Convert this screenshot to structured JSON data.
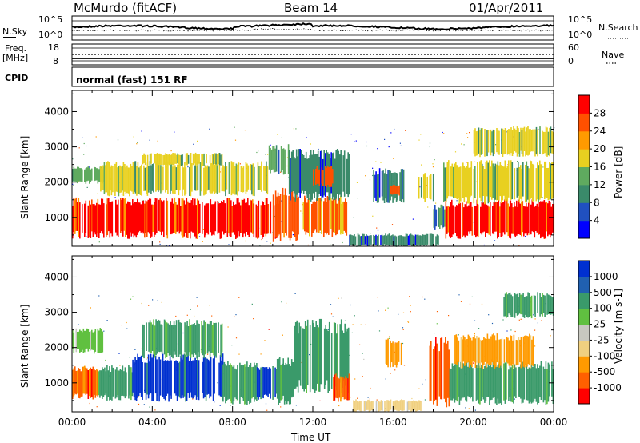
{
  "header": {
    "station": "McMurdo (fitACF)",
    "beam": "Beam 14",
    "date": "01/Apr/2011"
  },
  "top_panels": {
    "nsky_label": "N.Sky",
    "nsearch_label": "N.Search",
    "noise_ticks": [
      "10^5",
      "10^0"
    ],
    "freq_label_line1": "Freq.",
    "freq_label_line2": "[MHz]",
    "freq_ticks": [
      "18",
      "8"
    ],
    "nave_label": "Nave",
    "nave_ticks": [
      "60",
      "0"
    ],
    "cpid_label": "CPID",
    "cpid_value": "normal (fast) 151 RF"
  },
  "chart_data": [
    {
      "type": "heatmap",
      "title": "",
      "xlabel": "Time UT",
      "ylabel": "Slant Range [km]",
      "xlim": [
        0,
        24
      ],
      "ylim": [
        180,
        4600
      ],
      "x_ticks": [
        "00:00",
        "04:00",
        "08:00",
        "12:00",
        "16:00",
        "20:00",
        "00:00"
      ],
      "y_ticks": [
        1000,
        2000,
        3000,
        4000
      ],
      "colorbar": {
        "label": "Power [dB]",
        "ticks": [
          "4",
          "8",
          "12",
          "16",
          "20",
          "24",
          "28"
        ],
        "colors": [
          "#0000ff",
          "#2050c0",
          "#3a8a6a",
          "#5faa5f",
          "#e8d020",
          "#ff9a00",
          "#ff5000",
          "#ff0000"
        ]
      },
      "regions": [
        {
          "t0": 0.0,
          "t1": 10.4,
          "r0": 500,
          "r1": 1450,
          "level": 28
        },
        {
          "t0": 10.0,
          "t1": 11.3,
          "r0": 450,
          "r1": 1700,
          "level": 24
        },
        {
          "t0": 11.5,
          "t1": 13.7,
          "r0": 550,
          "r1": 1500,
          "level": 24
        },
        {
          "t0": 0.0,
          "t1": 1.6,
          "r0": 2000,
          "r1": 2400,
          "level": 12
        },
        {
          "t0": 1.4,
          "t1": 9.8,
          "r0": 1700,
          "r1": 2500,
          "level": 18
        },
        {
          "t0": 3.5,
          "t1": 7.5,
          "r0": 2500,
          "r1": 2800,
          "level": 16
        },
        {
          "t0": 9.8,
          "t1": 10.8,
          "r0": 2300,
          "r1": 3000,
          "level": 14
        },
        {
          "t0": 10.8,
          "t1": 13.8,
          "r0": 1600,
          "r1": 2800,
          "level": 10
        },
        {
          "t0": 12.0,
          "t1": 13.0,
          "r0": 1900,
          "r1": 2400,
          "level": 26
        },
        {
          "t0": 15.0,
          "t1": 16.5,
          "r0": 1500,
          "r1": 2300,
          "level": 8
        },
        {
          "t0": 15.8,
          "t1": 16.3,
          "r0": 1650,
          "r1": 1900,
          "level": 24
        },
        {
          "t0": 17.2,
          "t1": 18.0,
          "r0": 1500,
          "r1": 2200,
          "level": 16
        },
        {
          "t0": 13.8,
          "t1": 18.3,
          "r0": 200,
          "r1": 500,
          "level": 8
        },
        {
          "t0": 18.0,
          "t1": 18.6,
          "r0": 700,
          "r1": 1300,
          "level": 12
        },
        {
          "t0": 18.6,
          "t1": 24.0,
          "r0": 500,
          "r1": 1400,
          "level": 28
        },
        {
          "t0": 18.5,
          "t1": 24.0,
          "r0": 1500,
          "r1": 2500,
          "level": 16
        },
        {
          "t0": 20.0,
          "t1": 24.0,
          "r0": 2800,
          "r1": 3500,
          "level": 16
        }
      ]
    },
    {
      "type": "heatmap",
      "title": "",
      "xlabel": "Time UT",
      "ylabel": "Slant Range [km]",
      "xlim": [
        0,
        24
      ],
      "ylim": [
        180,
        4600
      ],
      "x_ticks": [
        "00:00",
        "04:00",
        "08:00",
        "12:00",
        "16:00",
        "20:00",
        "00:00"
      ],
      "y_ticks": [
        1000,
        2000,
        3000,
        4000
      ],
      "colorbar": {
        "label": "Velocity [m s-1]",
        "ticks": [
          "1000",
          "500",
          "100",
          "25",
          "-25",
          "-100",
          "-500",
          "-1000"
        ],
        "colors": [
          "#0030d0",
          "#2060b0",
          "#3a9a6a",
          "#60c040",
          "#c8c8c0",
          "#f0d080",
          "#ff9a00",
          "#ff6000",
          "#ff0000"
        ]
      },
      "regions": [
        {
          "t0": 0.0,
          "t1": 1.5,
          "r0": 1900,
          "r1": 2500,
          "level": 25
        },
        {
          "t0": 0.0,
          "t1": 1.3,
          "r0": 600,
          "r1": 1400,
          "level": -500
        },
        {
          "t0": 1.3,
          "t1": 3.0,
          "r0": 600,
          "r1": 1400,
          "level": 100
        },
        {
          "t0": 3.0,
          "t1": 7.5,
          "r0": 600,
          "r1": 1700,
          "level": 1000
        },
        {
          "t0": 7.5,
          "t1": 9.2,
          "r0": 500,
          "r1": 1500,
          "level": 100
        },
        {
          "t0": 9.2,
          "t1": 10.2,
          "r0": 600,
          "r1": 1400,
          "level": 1000
        },
        {
          "t0": 10.2,
          "t1": 11.0,
          "r0": 500,
          "r1": 1600,
          "level": 100
        },
        {
          "t0": 11.0,
          "t1": 13.8,
          "r0": 900,
          "r1": 2600,
          "level": 100
        },
        {
          "t0": 13.0,
          "t1": 13.8,
          "r0": 500,
          "r1": 1200,
          "level": -500
        },
        {
          "t0": 3.5,
          "t1": 7.5,
          "r0": 1800,
          "r1": 2700,
          "level": 100
        },
        {
          "t0": 14.0,
          "t1": 17.5,
          "r0": 200,
          "r1": 500,
          "level": -25
        },
        {
          "t0": 15.6,
          "t1": 16.4,
          "r0": 1500,
          "r1": 2200,
          "level": -100
        },
        {
          "t0": 17.8,
          "t1": 18.8,
          "r0": 500,
          "r1": 2100,
          "level": -500
        },
        {
          "t0": 18.8,
          "t1": 24.0,
          "r0": 500,
          "r1": 1500,
          "level": 100
        },
        {
          "t0": 19.0,
          "t1": 23.0,
          "r0": 1500,
          "r1": 2300,
          "level": -100
        },
        {
          "t0": 21.5,
          "t1": 24.0,
          "r0": 2900,
          "r1": 3500,
          "level": 100
        }
      ]
    }
  ]
}
